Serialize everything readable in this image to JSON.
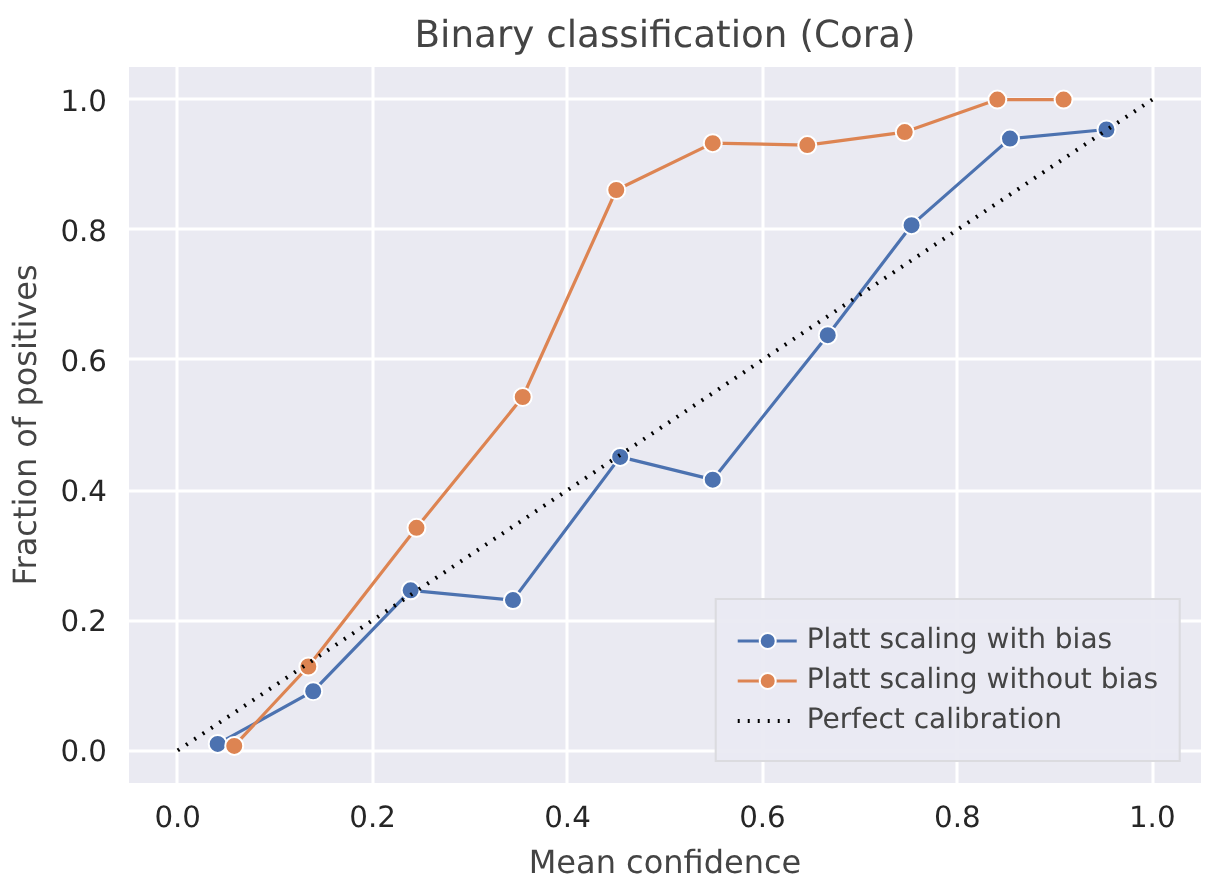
{
  "chart_data": {
    "type": "line",
    "title": "Binary classification (Cora)",
    "xlabel": "Mean confidence",
    "ylabel": "Fraction of positives",
    "xlim": [
      -0.05,
      1.05
    ],
    "ylim": [
      -0.05,
      1.05
    ],
    "xticks": [
      {
        "value": 0,
        "label": "0.0"
      },
      0.2,
      0.4,
      0.6,
      0.8,
      {
        "value": 1,
        "label": "1.0"
      }
    ],
    "yticks": [
      {
        "value": 0,
        "label": "0.0"
      },
      0.2,
      0.4,
      0.6,
      0.8,
      {
        "value": 1,
        "label": "1.0"
      }
    ],
    "grid": true,
    "legend": "bottom right",
    "marker": "circle",
    "series": [
      {
        "name": "Platt scaling with bias",
        "color": "#4c72b0",
        "x": [
          0.041,
          0.139,
          0.239,
          0.344,
          0.454,
          0.549,
          0.667,
          0.753,
          0.854,
          0.953
        ],
        "values": [
          0.01,
          0.091,
          0.246,
          0.231,
          0.451,
          0.416,
          0.638,
          0.807,
          0.94,
          0.954
        ]
      },
      {
        "name": "Platt scaling without bias",
        "color": "#dd8452",
        "x": [
          0.058,
          0.134,
          0.245,
          0.354,
          0.45,
          0.549,
          0.646,
          0.746,
          0.841,
          0.909
        ],
        "values": [
          0.007,
          0.129,
          0.342,
          0.543,
          0.861,
          0.933,
          0.93,
          0.95,
          1.0,
          1.0
        ]
      },
      {
        "name": "Perfect calibration",
        "color": "#000000",
        "x": [
          0.0,
          1.0
        ],
        "values": [
          0.0,
          1.0
        ],
        "marker": "none",
        "line_style": "dotted"
      }
    ]
  }
}
